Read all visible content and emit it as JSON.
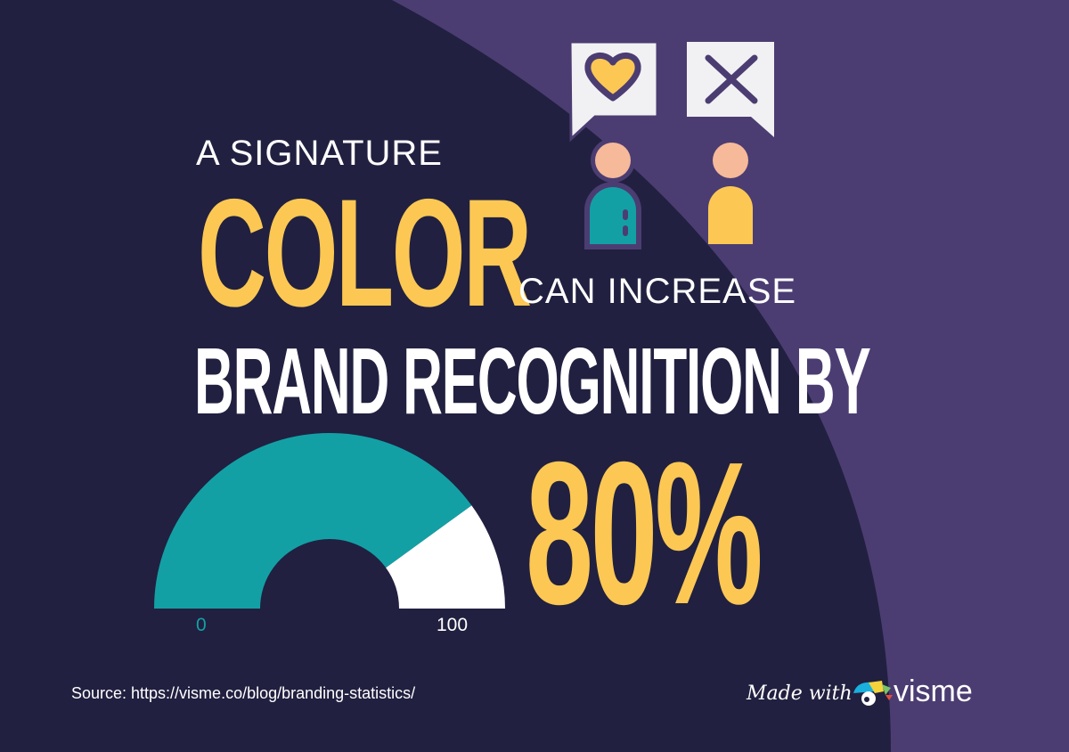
{
  "headline": {
    "line1": "A SIGNATURE",
    "highlight": "COLOR",
    "line3": "CAN INCREASE",
    "line4": "BRAND RECOGNITION BY",
    "stat": "80%"
  },
  "gauge": {
    "value": 80,
    "min": 0,
    "max": 100,
    "min_label": "0",
    "max_label": "100",
    "fill_color": "#13a0a5",
    "rest_color": "#ffffff"
  },
  "illustration": {
    "icons": [
      "speech-bubble-heart-icon",
      "speech-bubble-x-icon",
      "person-teal-icon",
      "person-yellow-icon"
    ]
  },
  "footer": {
    "source": "Source: https://visme.co/blog/branding-statistics/",
    "made_with": "Made with",
    "brand": "visme"
  },
  "colors": {
    "background": "#212040",
    "purple": "#4b3d72",
    "accent_yellow": "#fcc853",
    "teal": "#13a0a5"
  }
}
